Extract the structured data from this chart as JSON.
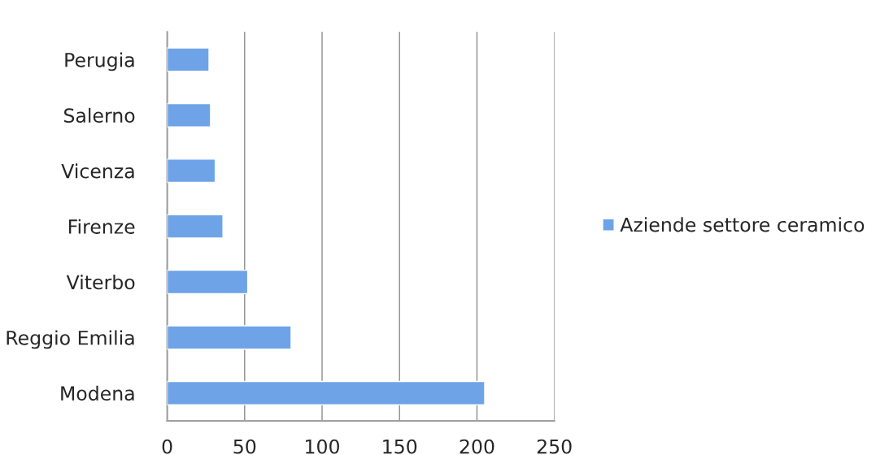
{
  "chart_data": {
    "type": "bar",
    "orientation": "horizontal",
    "categories": [
      "Perugia",
      "Salerno",
      "Vicenza",
      "Firenze",
      "Viterbo",
      "Reggio Emilia",
      "Modena"
    ],
    "series": [
      {
        "name": "Aziende settore ceramico",
        "color": "#6fa3e8",
        "values": [
          27,
          28,
          31,
          36,
          52,
          80,
          205
        ]
      }
    ],
    "xlim": [
      0,
      250
    ],
    "xticks": [
      0,
      50,
      100,
      150,
      200,
      250
    ],
    "grid": "x",
    "legend": "right"
  }
}
